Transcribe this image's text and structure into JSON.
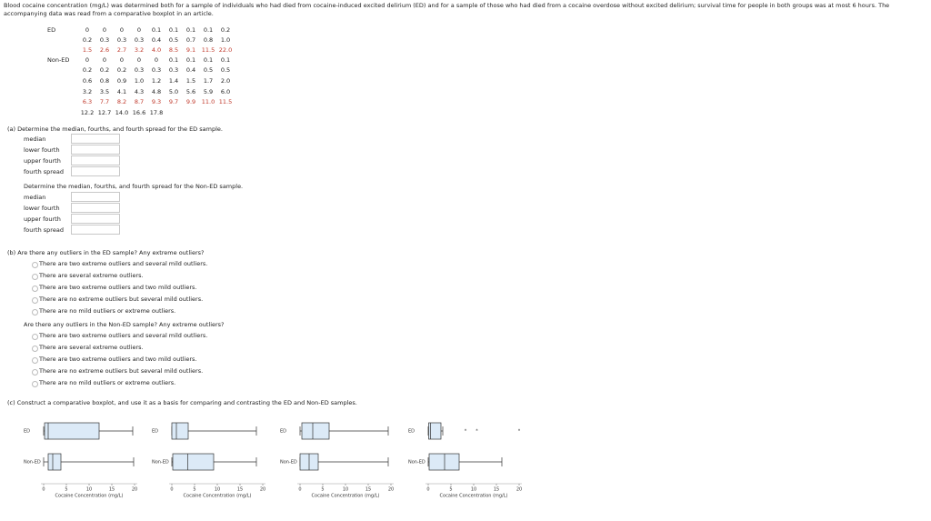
{
  "intro": "Blood cocaine concentration (mg/L) was determined both for a sample of individuals who had died from cocaine-induced excited delirium (ED) and for a sample of those who had died from a cocaine overdose without excited delirium; survival time for people in both groups was at most 6 hours. The accompanying data was read from a comparative boxplot in an article.",
  "data_table": {
    "groups": [
      {
        "label": "ED",
        "rows": [
          [
            "0",
            "0",
            "0",
            "0",
            "0.1",
            "0.1",
            "0.1",
            "0.1",
            "0.2"
          ],
          [
            "0.2",
            "0.3",
            "0.3",
            "0.3",
            "0.4",
            "0.5",
            "0.7",
            "0.8",
            "1.0"
          ],
          [
            "1.5",
            "2.6",
            "2.7",
            "3.2",
            "4.0",
            "8.5",
            "9.1",
            "11.5",
            "22.0"
          ]
        ]
      },
      {
        "label": "Non-ED",
        "rows": [
          [
            "0",
            "0",
            "0",
            "0",
            "0",
            "0.1",
            "0.1",
            "0.1",
            "0.1"
          ],
          [
            "0.2",
            "0.2",
            "0.2",
            "0.3",
            "0.3",
            "0.3",
            "0.4",
            "0.5",
            "0.5"
          ],
          [
            "0.6",
            "0.8",
            "0.9",
            "1.0",
            "1.2",
            "1.4",
            "1.5",
            "1.7",
            "2.0"
          ],
          [
            "3.2",
            "3.5",
            "4.1",
            "4.3",
            "4.8",
            "5.0",
            "5.6",
            "5.9",
            "6.0"
          ],
          [
            "6.3",
            "7.7",
            "8.2",
            "8.7",
            "9.3",
            "9.7",
            "9.9",
            "11.0",
            "11.5"
          ],
          [
            "12.2",
            "12.7",
            "14.0",
            "16.6",
            "17.8"
          ]
        ]
      }
    ]
  },
  "part_a": {
    "prompt": "(a)  Determine the median, fourths, and fourth spread for the ED sample.",
    "fields": [
      "median",
      "lower fourth",
      "upper fourth",
      "fourth spread"
    ],
    "prompt2": "Determine the median, fourths, and fourth spread for the Non-ED sample.",
    "fields2": [
      "median",
      "lower fourth",
      "upper fourth",
      "fourth spread"
    ]
  },
  "part_b": {
    "prompt": "(b)  Are there any outliers in the ED sample? Any extreme outliers?",
    "options": [
      "There are two extreme outliers and several mild outliers.",
      "There are several extreme outliers.",
      "There are two extreme outliers and two mild outliers.",
      "There are no extreme outliers but several mild outliers.",
      "There are no mild outliers or extreme outliers."
    ],
    "prompt2": "Are there any outliers in the Non-ED sample? Any extreme outliers?",
    "options2": [
      "There are two extreme outliers and several mild outliers.",
      "There are several extreme outliers.",
      "There are two extreme outliers and two mild outliers.",
      "There are no extreme outliers but several mild outliers.",
      "There are no mild outliers or extreme outliers."
    ]
  },
  "part_c": {
    "prompt": "(c)  Construct a comparative boxplot, and use it as a basis for comparing and contrasting the ED and Non-ED samples.",
    "charts": [
      {
        "type": "boxplot",
        "categories": [
          "ED",
          "Non-ED"
        ],
        "x_label": "Cocaine Concentration (mg/L)",
        "xlim": [
          0,
          20
        ],
        "xticks": [
          0,
          5,
          10,
          15,
          20
        ],
        "color": "#dceaf7",
        "boxes": [
          {
            "min": 0,
            "q1": 0.2,
            "median": 1,
            "q3": 12.2,
            "max": 19.6,
            "outliers": []
          },
          {
            "min": 0,
            "q1": 1,
            "median": 2,
            "q3": 3.8,
            "max": 19.8,
            "outliers": []
          }
        ]
      },
      {
        "type": "boxplot",
        "categories": [
          "ED",
          "Non-ED"
        ],
        "x_label": "Cocaine Concentration (mg/L)",
        "xlim": [
          0,
          20
        ],
        "xticks": [
          0,
          5,
          10,
          15,
          20
        ],
        "color": "#dceaf7",
        "boxes": [
          {
            "min": 0,
            "q1": 0,
            "median": 1,
            "q3": 3.6,
            "max": 18.6,
            "outliers": []
          },
          {
            "min": 0,
            "q1": 0.2,
            "median": 3.5,
            "q3": 9.2,
            "max": 18.6,
            "outliers": []
          }
        ]
      },
      {
        "type": "boxplot",
        "categories": [
          "ED",
          "Non-ED"
        ],
        "x_label": "Cocaine Concentration (mg/L)",
        "xlim": [
          0,
          20
        ],
        "xticks": [
          0,
          5,
          10,
          15,
          20
        ],
        "color": "#dceaf7",
        "boxes": [
          {
            "min": 0,
            "q1": 0.4,
            "median": 2.8,
            "q3": 6.4,
            "max": 19.4,
            "outliers": []
          },
          {
            "min": 0,
            "q1": 0,
            "median": 2,
            "q3": 4,
            "max": 19.4,
            "outliers": []
          }
        ]
      },
      {
        "type": "boxplot",
        "categories": [
          "ED",
          "Non-ED"
        ],
        "x_label": "Cocaine Concentration (mg/L)",
        "xlim": [
          0,
          20
        ],
        "xticks": [
          0,
          5,
          10,
          15,
          20
        ],
        "color": "#dceaf7",
        "boxes": [
          {
            "min": 0,
            "q1": 0.1,
            "median": 0.5,
            "q3": 2.8,
            "max": 3.2,
            "outliers": [
              8.2,
              10.7,
              20
            ]
          },
          {
            "min": 0,
            "q1": 0.2,
            "median": 3.6,
            "q3": 6.8,
            "max": 16.2,
            "outliers": []
          }
        ]
      }
    ]
  }
}
